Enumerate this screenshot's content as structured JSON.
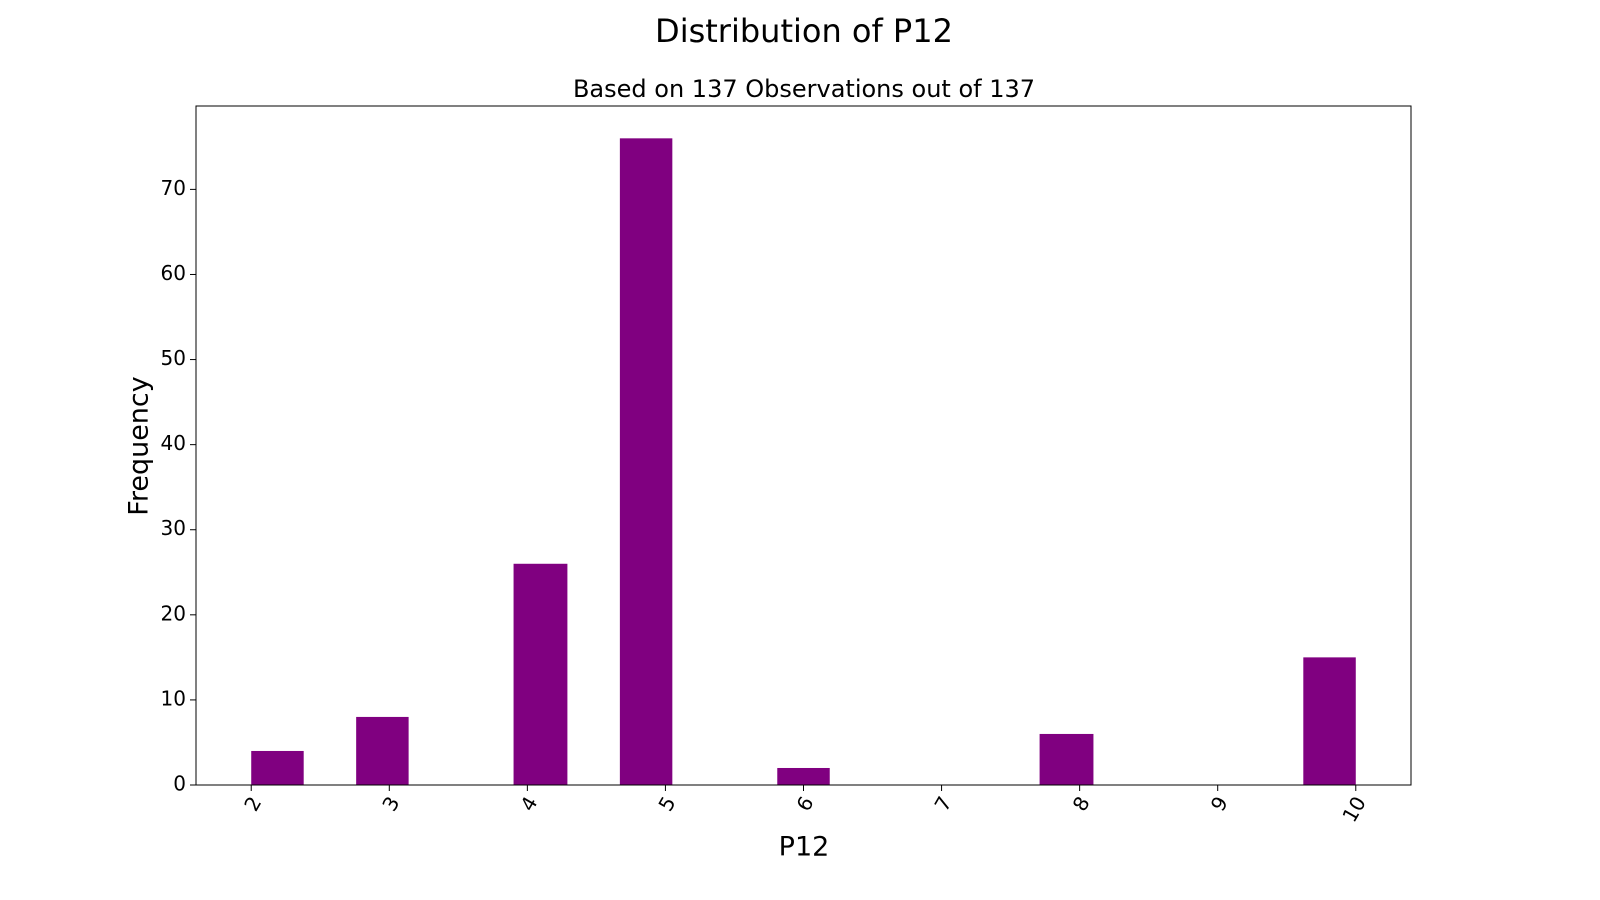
{
  "chart_data": {
    "type": "histogram",
    "title": "Distribution of P12",
    "subtitle": "Based on 137 Observations out of 137",
    "x_label": "P12",
    "y_label": "Frequency",
    "bins": [
      2,
      2.38,
      2.76,
      3.14,
      3.52,
      3.9,
      4.29,
      4.67,
      5.05,
      5.43,
      5.81,
      6.19,
      6.57,
      6.95,
      7.33,
      7.71,
      8.1,
      8.48,
      8.86,
      9.24,
      9.62,
      10
    ],
    "values": [
      4,
      0,
      8,
      0,
      0,
      26,
      0,
      76,
      0,
      0,
      2,
      0,
      0,
      0,
      0,
      6,
      0,
      0,
      0,
      0,
      15
    ],
    "color": "#800080",
    "xlim": [
      1.6,
      10.4
    ],
    "ylim": [
      0,
      79.8
    ],
    "xticks": [
      2,
      3,
      4,
      5,
      6,
      7,
      8,
      9,
      10
    ],
    "yticks": [
      0,
      10,
      20,
      30,
      40,
      50,
      60,
      70
    ],
    "grid": false
  }
}
